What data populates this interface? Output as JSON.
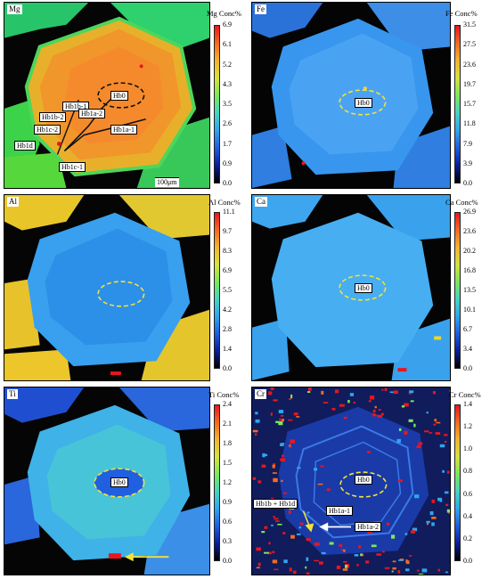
{
  "colors": {
    "scale_gradient": [
      "#000000",
      "#0a1f9a",
      "#1f5fe0",
      "#2fa6ee",
      "#46d6c0",
      "#7de85a",
      "#d6e43a",
      "#f4b52e",
      "#f46a22",
      "#e8161e"
    ],
    "annotation_yellow": "#f2e23a",
    "trace_black": "#111111"
  },
  "panels": [
    {
      "element": "Mg",
      "scale_title": "Mg Conc%",
      "ticks": [
        "6.9",
        "6.1",
        "5.2",
        "4.3",
        "3.5",
        "2.6",
        "1.7",
        "0.9",
        "0.0"
      ],
      "scalebar": "100μm",
      "labels": [
        "Hb0",
        "Hb1b-1",
        "Hb1a-2",
        "Hb1b-2",
        "Hb1a-1",
        "Hb1c-2",
        "Hb1d",
        "Hb1c-1"
      ]
    },
    {
      "element": "Fe",
      "scale_title": "Fe Conc%",
      "ticks": [
        "31.5",
        "27.5",
        "23.6",
        "19.7",
        "15.7",
        "11.8",
        "7.9",
        "3.9",
        "0.0"
      ],
      "labels": [
        "Hb0"
      ]
    },
    {
      "element": "Al",
      "scale_title": "Al Conc%",
      "ticks": [
        "11.1",
        "9.7",
        "8.3",
        "6.9",
        "5.5",
        "4.2",
        "2.8",
        "1.4",
        "0.0"
      ],
      "labels": []
    },
    {
      "element": "Ca",
      "scale_title": "Ca Conc%",
      "ticks": [
        "26.9",
        "23.6",
        "20.2",
        "16.8",
        "13.5",
        "10.1",
        "6.7",
        "3.4",
        "0.0"
      ],
      "labels": [
        "Hb0"
      ]
    },
    {
      "element": "Ti",
      "scale_title": "Ti Conc%",
      "ticks": [
        "2.4",
        "2.1",
        "1.8",
        "1.5",
        "1.2",
        "0.9",
        "0.6",
        "0.3",
        "0.0"
      ],
      "labels": [
        "Hb0"
      ]
    },
    {
      "element": "Cr",
      "scale_title": "Cr Conc%",
      "ticks": [
        "1.4",
        "1.2",
        "1.0",
        "0.8",
        "0.6",
        "0.4",
        "0.2",
        "0.0"
      ],
      "labels": [
        "Hb0",
        "Hb1b + Hb1d",
        "Hb1a-1",
        "Hb1a-2"
      ]
    }
  ]
}
